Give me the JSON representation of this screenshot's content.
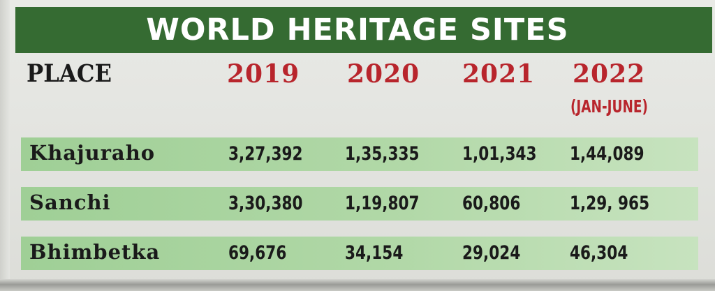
{
  "title": "WORLD HERITAGE SITES",
  "columns": {
    "place": "PLACE",
    "years": [
      "2019",
      "2020",
      "2021",
      "2022"
    ],
    "last_year_note": "(JAN-JUNE)"
  },
  "rows": [
    {
      "place": "Khajuraho",
      "values": [
        "3,27,392",
        "1,35,335",
        "1,01,343",
        "1,44,089"
      ]
    },
    {
      "place": "Sanchi",
      "values": [
        "3,30,380",
        "1,19,807",
        "60,806",
        "1,29, 965"
      ]
    },
    {
      "place": "Bhimbetka",
      "values": [
        "69,676",
        "34,154",
        "29,024",
        "46,304"
      ]
    }
  ],
  "colors": {
    "banner": "#356b32",
    "year_text": "#b8252c",
    "row_band": "#a9d49f"
  }
}
